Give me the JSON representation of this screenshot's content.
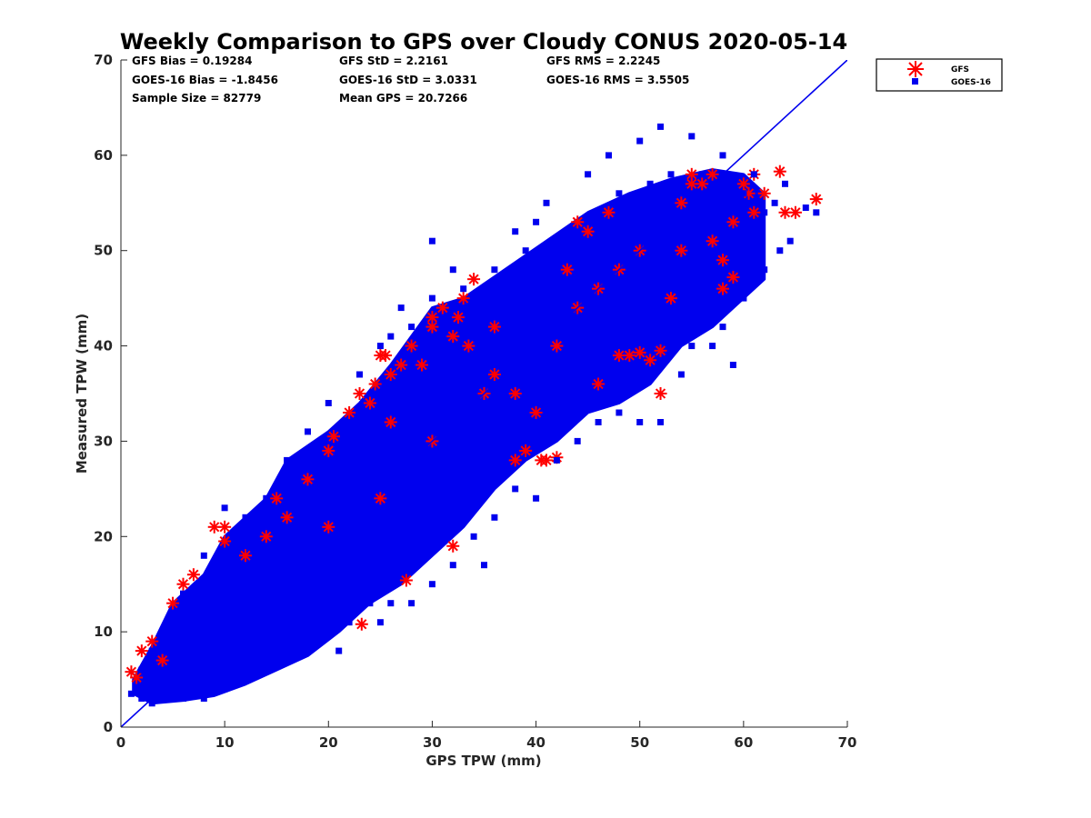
{
  "chart_data": {
    "type": "scatter",
    "title": "Weekly Comparison to GPS over Cloudy CONUS 2020-05-14",
    "xlabel": "GPS TPW (mm)",
    "ylabel": "Measured TPW (mm)",
    "xlim": [
      0,
      70
    ],
    "ylim": [
      0,
      70
    ],
    "xticks": [
      0,
      10,
      20,
      30,
      40,
      50,
      60,
      70
    ],
    "yticks": [
      0,
      10,
      20,
      30,
      40,
      50,
      60,
      70
    ],
    "grid": false,
    "legend_position": "outside-top-right",
    "stats": [
      "GFS Bias = 0.19284",
      "GOES-16 Bias = -1.8456",
      "Sample Size = 82779",
      "GFS StD = 2.2161",
      "GOES-16 StD = 3.0331",
      "Mean GPS = 20.7266",
      "GFS RMS = 2.2245",
      "GOES-16 RMS = 3.5505"
    ],
    "reference_line": {
      "x": [
        0,
        70
      ],
      "y": [
        0,
        70
      ]
    },
    "series": [
      {
        "name": "GFS",
        "marker": "asterisk",
        "color": "#ff0000",
        "points": [
          [
            1,
            5.8
          ],
          [
            1.5,
            5.2
          ],
          [
            2,
            8
          ],
          [
            3,
            9
          ],
          [
            4,
            7
          ],
          [
            5,
            13
          ],
          [
            6,
            15
          ],
          [
            7,
            16
          ],
          [
            9,
            21
          ],
          [
            10,
            21
          ],
          [
            10,
            19.5
          ],
          [
            12,
            18
          ],
          [
            14,
            20
          ],
          [
            15,
            24
          ],
          [
            16,
            22
          ],
          [
            18,
            26
          ],
          [
            20,
            29
          ],
          [
            20.5,
            30.5
          ],
          [
            22,
            33
          ],
          [
            23,
            35
          ],
          [
            23.2,
            10.8
          ],
          [
            24,
            34
          ],
          [
            24.5,
            36
          ],
          [
            25,
            39
          ],
          [
            25.5,
            39
          ],
          [
            26,
            37
          ],
          [
            27,
            38
          ],
          [
            27.5,
            15.4
          ],
          [
            28,
            40
          ],
          [
            29,
            38
          ],
          [
            30,
            42
          ],
          [
            30,
            43
          ],
          [
            31,
            44
          ],
          [
            32,
            41
          ],
          [
            32.5,
            43
          ],
          [
            33,
            45
          ],
          [
            33.5,
            40
          ],
          [
            34,
            47
          ],
          [
            36,
            42
          ],
          [
            38,
            28
          ],
          [
            39,
            29
          ],
          [
            40.5,
            28
          ],
          [
            41,
            28
          ],
          [
            42,
            28.3
          ],
          [
            42,
            40
          ],
          [
            43,
            48
          ],
          [
            44,
            53
          ],
          [
            45,
            52
          ],
          [
            46,
            36
          ],
          [
            47,
            54
          ],
          [
            48,
            39
          ],
          [
            49,
            39
          ],
          [
            50,
            39.3
          ],
          [
            51,
            38.5
          ],
          [
            52,
            35
          ],
          [
            52,
            39.5
          ],
          [
            53,
            45
          ],
          [
            54,
            55
          ],
          [
            55,
            58
          ],
          [
            55,
            57
          ],
          [
            56,
            57
          ],
          [
            57,
            58
          ],
          [
            58,
            49
          ],
          [
            58,
            46
          ],
          [
            59,
            47.2
          ],
          [
            60,
            57
          ],
          [
            60.5,
            56
          ],
          [
            61,
            58
          ],
          [
            62,
            56
          ],
          [
            63.5,
            58.3
          ],
          [
            64,
            54
          ],
          [
            65,
            54
          ],
          [
            67,
            55.4
          ],
          [
            36,
            37
          ],
          [
            38,
            35
          ],
          [
            40,
            33
          ],
          [
            44,
            44
          ],
          [
            46,
            46
          ],
          [
            48,
            48
          ],
          [
            50,
            50
          ],
          [
            54,
            50
          ],
          [
            57,
            51
          ],
          [
            59,
            53
          ],
          [
            61,
            54
          ],
          [
            20,
            21
          ],
          [
            25,
            24
          ],
          [
            30,
            30
          ],
          [
            35,
            35
          ],
          [
            32,
            19
          ],
          [
            26,
            32
          ]
        ]
      },
      {
        "name": "GOES-16",
        "marker": "square",
        "color": "#0000ee",
        "points": [
          [
            2,
            3
          ],
          [
            3,
            2.5
          ],
          [
            4,
            3
          ],
          [
            6,
            3
          ],
          [
            8,
            3
          ],
          [
            10,
            4
          ],
          [
            12,
            5
          ],
          [
            14,
            6
          ],
          [
            16,
            7
          ],
          [
            18,
            9
          ],
          [
            20,
            11
          ],
          [
            21,
            8
          ],
          [
            22,
            11
          ],
          [
            24,
            13
          ],
          [
            25,
            11
          ],
          [
            26,
            13
          ],
          [
            28,
            13
          ],
          [
            30,
            15
          ],
          [
            32,
            17
          ],
          [
            34,
            20
          ],
          [
            35,
            17
          ],
          [
            36,
            22
          ],
          [
            38,
            25
          ],
          [
            40,
            24
          ],
          [
            42,
            28
          ],
          [
            44,
            30
          ],
          [
            46,
            32
          ],
          [
            48,
            33
          ],
          [
            50,
            32
          ],
          [
            52,
            32
          ],
          [
            54,
            37
          ],
          [
            55,
            40
          ],
          [
            57,
            40
          ],
          [
            58,
            42
          ],
          [
            59,
            38
          ],
          [
            60,
            45
          ],
          [
            62,
            48
          ],
          [
            63.5,
            50
          ],
          [
            64.5,
            51
          ],
          [
            67,
            54
          ],
          [
            66,
            54.5
          ],
          [
            64,
            57
          ],
          [
            61,
            58
          ],
          [
            58,
            60
          ],
          [
            55,
            62
          ],
          [
            52,
            63
          ],
          [
            50,
            61.5
          ],
          [
            47,
            60
          ],
          [
            45,
            58
          ],
          [
            41,
            55
          ],
          [
            40,
            53
          ],
          [
            38,
            52
          ],
          [
            30,
            51
          ],
          [
            32,
            48
          ],
          [
            30,
            45
          ],
          [
            28,
            42
          ],
          [
            26,
            41
          ],
          [
            25,
            40
          ],
          [
            23,
            37
          ],
          [
            20,
            34
          ],
          [
            18,
            31
          ],
          [
            16,
            28
          ],
          [
            14,
            24
          ],
          [
            12,
            22
          ],
          [
            10,
            23
          ],
          [
            8,
            18
          ],
          [
            6,
            14
          ],
          [
            5,
            12
          ],
          [
            4,
            10
          ],
          [
            3,
            8
          ],
          [
            2,
            6
          ],
          [
            1.5,
            4
          ],
          [
            1,
            3.5
          ],
          [
            27,
            44
          ],
          [
            33,
            46
          ],
          [
            36,
            48
          ],
          [
            39,
            50
          ],
          [
            43,
            52
          ],
          [
            46,
            54
          ],
          [
            48,
            56
          ],
          [
            51,
            57
          ],
          [
            53,
            58
          ],
          [
            56,
            58
          ],
          [
            57,
            57
          ],
          [
            60,
            56
          ],
          [
            62,
            54
          ],
          [
            63,
            55
          ],
          [
            59,
            50
          ],
          [
            61,
            52
          ],
          [
            55,
            50
          ],
          [
            53,
            48
          ],
          [
            51,
            45
          ],
          [
            49,
            43
          ],
          [
            45,
            40
          ],
          [
            42,
            37
          ],
          [
            40,
            35
          ],
          [
            37,
            32
          ],
          [
            34,
            28
          ],
          [
            31,
            26
          ],
          [
            28,
            23
          ],
          [
            25,
            20
          ],
          [
            22,
            17
          ],
          [
            19,
            14
          ],
          [
            16,
            11
          ],
          [
            13,
            8
          ],
          [
            10,
            6
          ],
          [
            7,
            4
          ],
          [
            35,
            30
          ],
          [
            38,
            33
          ],
          [
            41,
            36
          ],
          [
            44,
            39
          ],
          [
            47,
            42
          ],
          [
            50,
            45
          ],
          [
            20,
            18
          ],
          [
            23,
            21
          ],
          [
            26,
            24
          ],
          [
            29,
            27
          ],
          [
            32,
            30
          ],
          [
            15,
            14
          ],
          [
            18,
            16
          ],
          [
            12,
            11
          ],
          [
            9,
            9
          ]
        ]
      }
    ]
  }
}
